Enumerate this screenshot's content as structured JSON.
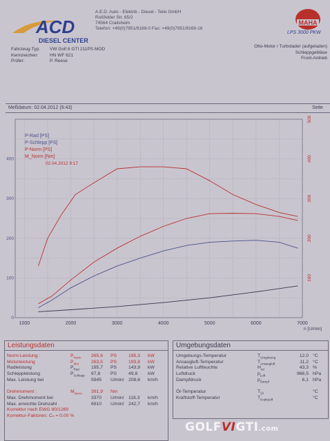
{
  "company": {
    "logo_text": "ACD",
    "logo_sub": "DIESEL CENTER",
    "name": "A.E.D. Auto - Elektrik - Diesel - Teile GmbH",
    "street": "Roßfelder Str. 65/2",
    "city": "74564 Crailsheim",
    "phone": "Telefon: +49(0)7951/9169-0  Fax: +49(0)7951/9169-18"
  },
  "maha": {
    "brand": "MAHA",
    "model": "LPS 3000 PKW"
  },
  "vehicle": {
    "type_label": "Fahrzeug-Typ:",
    "type_value": "VW Golf 6 GTI 211PS MOD",
    "plate_label": "Kennzeichen:",
    "plate_value": "HN WF 621",
    "tester_label": "Prüfer:",
    "tester_value": "P. Reese",
    "right1": "Otto-Motor / Turbolader (aufgeladen)",
    "right2": "Schleppgebläse",
    "right3": "Front-Antrieb"
  },
  "measurement": {
    "date_label": "Meßdatum: 02.04.2012 (9:43)",
    "page_label": "Seite"
  },
  "chart_data": {
    "type": "line",
    "x_unit": "n [U/min]",
    "x_ticks": [
      1000,
      2000,
      3000,
      4000,
      5000,
      6000,
      7000
    ],
    "xlim": [
      800,
      7000
    ],
    "y_left_ticks": [
      0,
      100,
      200,
      300,
      400
    ],
    "y_left_lim": [
      0,
      500
    ],
    "y_right_ticks": [
      100,
      200,
      300,
      400,
      500
    ],
    "y_right_lim": [
      0,
      500
    ],
    "legend": [
      "P-Rad [PS]",
      "P-Schlepp [PS]",
      "P-Norm [PS]",
      "M_Norm [Nm]"
    ],
    "legend_date": "02.04.2012 9:17",
    "series": [
      {
        "name": "P-Rad [PS]",
        "color": "#4a4f86",
        "x": [
          1300,
          1600,
          2000,
          2500,
          3000,
          3500,
          4000,
          4500,
          5000,
          5500,
          6000,
          6500,
          6900
        ],
        "y": [
          25,
          45,
          75,
          105,
          130,
          150,
          168,
          182,
          190,
          193,
          195,
          190,
          175
        ]
      },
      {
        "name": "P-Schlepp [PS]",
        "color": "#35354a",
        "x": [
          1300,
          2000,
          3000,
          4000,
          5000,
          6000,
          6900
        ],
        "y": [
          15,
          20,
          28,
          38,
          50,
          65,
          80
        ]
      },
      {
        "name": "P-Norm [PS]",
        "color": "#b8302c",
        "x": [
          1300,
          1600,
          2000,
          2500,
          3000,
          3500,
          4000,
          4500,
          5000,
          5500,
          6000,
          6500,
          6900
        ],
        "y": [
          35,
          55,
          95,
          140,
          175,
          205,
          230,
          250,
          262,
          263,
          262,
          255,
          245
        ]
      },
      {
        "name": "M_Norm [Nm]",
        "color": "#b8302c",
        "x": [
          1300,
          1500,
          1800,
          2100,
          2500,
          3000,
          3500,
          4000,
          4500,
          5000,
          5500,
          6000,
          6500,
          6900
        ],
        "y": [
          130,
          200,
          260,
          310,
          340,
          375,
          380,
          380,
          375,
          345,
          310,
          285,
          265,
          255
        ]
      }
    ]
  },
  "performance": {
    "title": "Leistungsdaten",
    "rows": [
      {
        "label": "Norm-Leistung :",
        "sym": "P",
        "sub": "Norm",
        "v1": "265,6",
        "u1": "PS",
        "v2": "195,3",
        "u2": "kW",
        "red": true
      },
      {
        "label": "Motorleistung",
        "sym": "P",
        "sub": "Mot",
        "v1": "263,5",
        "u1": "PS",
        "v2": "193,8",
        "u2": "kW",
        "red": true
      },
      {
        "label": "Radleistung",
        "sym": "P",
        "sub": "Rad",
        "v1": "195,7",
        "u1": "PS",
        "v2": "143,9",
        "u2": "kW",
        "red": false
      },
      {
        "label": "Schleppleistung",
        "sym": "P",
        "sub": "Schlepp",
        "v1": "67,8",
        "u1": "PS",
        "v2": "49,8",
        "u2": "kW",
        "red": false
      },
      {
        "label": "Max. Leistung bei",
        "sym": "",
        "sub": "",
        "v1": "5945",
        "u1": "U/min/",
        "v2": "208,6",
        "u2": "km/h",
        "red": false
      }
    ],
    "torque_label": "Drehmoment :",
    "torque_sym": "M",
    "torque_sub": "Norm",
    "torque_v": "391,9",
    "torque_u": "Nm",
    "maxtorque_label": "Max. Drehmoment bei",
    "maxtorque_v1": "3370",
    "maxtorque_u1": "U/min/",
    "maxtorque_v2": "118,3",
    "maxtorque_u2": "km/h",
    "limit_label": "Max. erreichte Drehzahl",
    "limit_v1": "6910",
    "limit_u1": "U/min/",
    "limit_v2": "242,7",
    "limit_u2": "km/h",
    "corr1": "Korrektur nach EWG 80/1269",
    "corr2": "Korrektur-Faktoren:  Cₙ =  0.00 %"
  },
  "ambient": {
    "title": "Umgebungsdaten",
    "rows": [
      {
        "label": "Umgebungs-Temperatur",
        "sym": "T",
        "sub": "Umgebung",
        "v": "12,0",
        "u": "°C"
      },
      {
        "label": "Ansaugluft-Temperatur",
        "sym": "T",
        "sub": "Ansaugluft",
        "v": "11,2",
        "u": "°C"
      },
      {
        "label": "Relative Luftfeuchte",
        "sym": "H",
        "sub": "rel",
        "v": "43,3",
        "u": "%"
      },
      {
        "label": "Luftdruck",
        "sym": "p",
        "sub": "Luft",
        "v": "966,5",
        "u": "hPa"
      },
      {
        "label": "Dampfdruck",
        "sym": "p",
        "sub": "Dampf",
        "v": "6,1",
        "u": "hPa"
      },
      {
        "label": "",
        "sym": "",
        "sub": "",
        "v": "",
        "u": ""
      },
      {
        "label": "Öl-Temperatur",
        "sym": "T",
        "sub": "Öl",
        "v": "",
        "u": "°C"
      },
      {
        "label": "Kraftstoff-Temperatur",
        "sym": "T",
        "sub": "Kraftstoff",
        "v": "",
        "u": "°C"
      }
    ]
  },
  "watermark": {
    "pre": "GOLF",
    "mid": "VI",
    "post": "GTI",
    "suffix": ".com"
  }
}
